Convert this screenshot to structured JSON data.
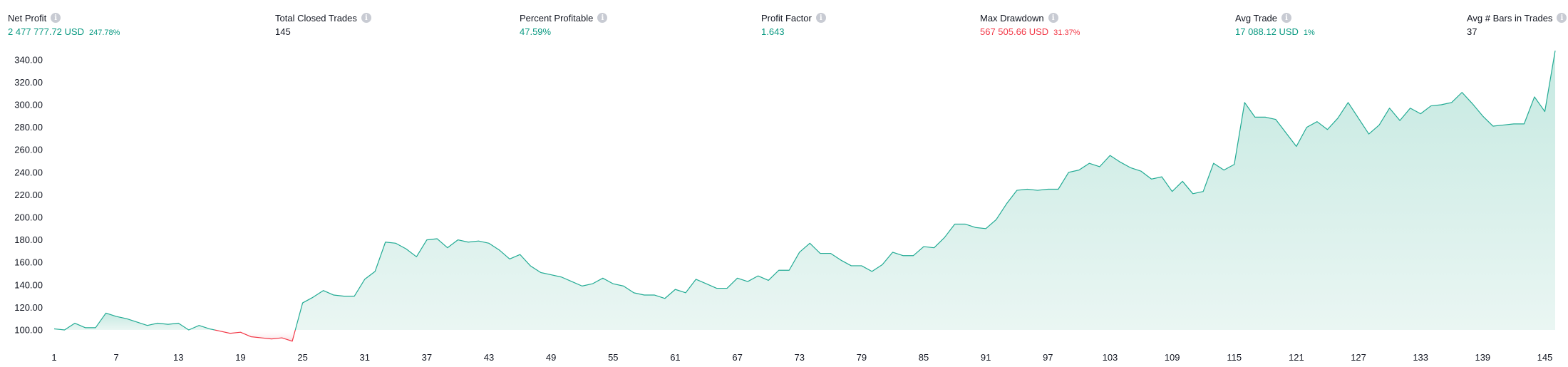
{
  "stats": [
    {
      "title": "Net Profit",
      "value": "2 477 777.72",
      "unit": "USD",
      "sub": "247.78%",
      "color": "pos"
    },
    {
      "title": "Total Closed Trades",
      "value": "145",
      "unit": "",
      "sub": "",
      "color": "neu"
    },
    {
      "title": "Percent Profitable",
      "value": "47.59%",
      "unit": "",
      "sub": "",
      "color": "pos"
    },
    {
      "title": "Profit Factor",
      "value": "1.643",
      "unit": "",
      "sub": "",
      "color": "pos"
    },
    {
      "title": "Max Drawdown",
      "value": "567 505.66",
      "unit": "USD",
      "sub": "31.37%",
      "color": "neg"
    },
    {
      "title": "Avg Trade",
      "value": "17 088.12",
      "unit": "USD",
      "sub": "1%",
      "color": "pos"
    },
    {
      "title": "Avg # Bars in Trades",
      "value": "37",
      "unit": "",
      "sub": "",
      "color": "neu"
    }
  ],
  "info_icon_glyph": "i",
  "colors": {
    "positive": "#089981",
    "negative": "#f23645",
    "text": "#131722",
    "line": "#22ab94",
    "area_top": "#c5e9e1",
    "area_bottom": "#eaf6f3",
    "neg_area": "#f9d9dc"
  },
  "chart_data": {
    "type": "area",
    "baseline": 100,
    "ylim": [
      88,
      348
    ],
    "xlim": [
      1,
      146
    ],
    "y_ticks": [
      100,
      120,
      140,
      160,
      180,
      200,
      220,
      240,
      260,
      280,
      300,
      320,
      340
    ],
    "y_tick_labels": [
      "100.00",
      "120.00",
      "140.00",
      "160.00",
      "180.00",
      "200.00",
      "220.00",
      "240.00",
      "260.00",
      "280.00",
      "300.00",
      "320.00",
      "340.00"
    ],
    "x_ticks": [
      1,
      7,
      13,
      19,
      25,
      31,
      37,
      43,
      49,
      55,
      61,
      67,
      73,
      79,
      85,
      91,
      97,
      103,
      109,
      115,
      121,
      127,
      133,
      139,
      145
    ],
    "x_tick_labels": [
      "1",
      "7",
      "13",
      "19",
      "25",
      "31",
      "37",
      "43",
      "49",
      "55",
      "61",
      "67",
      "73",
      "79",
      "85",
      "91",
      "97",
      "103",
      "109",
      "115",
      "121",
      "127",
      "133",
      "139",
      "145"
    ],
    "x": [
      1,
      2,
      3,
      4,
      5,
      6,
      7,
      8,
      9,
      10,
      11,
      12,
      13,
      14,
      15,
      16,
      17,
      18,
      19,
      20,
      21,
      22,
      23,
      24,
      25,
      26,
      27,
      28,
      29,
      30,
      31,
      32,
      33,
      34,
      35,
      36,
      37,
      38,
      39,
      40,
      41,
      42,
      43,
      44,
      45,
      46,
      47,
      48,
      49,
      50,
      51,
      52,
      53,
      54,
      55,
      56,
      57,
      58,
      59,
      60,
      61,
      62,
      63,
      64,
      65,
      66,
      67,
      68,
      69,
      70,
      71,
      72,
      73,
      74,
      75,
      76,
      77,
      78,
      79,
      80,
      81,
      82,
      83,
      84,
      85,
      86,
      87,
      88,
      89,
      90,
      91,
      92,
      93,
      94,
      95,
      96,
      97,
      98,
      99,
      100,
      101,
      102,
      103,
      104,
      105,
      106,
      107,
      108,
      109,
      110,
      111,
      112,
      113,
      114,
      115,
      116,
      117,
      118,
      119,
      120,
      121,
      122,
      123,
      124,
      125,
      126,
      127,
      128,
      129,
      130,
      131,
      132,
      133,
      134,
      135,
      136,
      137,
      138,
      139,
      140,
      141,
      142,
      143,
      144,
      145,
      146
    ],
    "y": [
      101,
      100,
      106,
      102,
      102,
      115,
      112,
      110,
      107,
      104,
      106,
      105,
      106,
      100,
      104,
      101,
      99,
      97,
      98,
      94,
      93,
      92,
      93,
      90,
      124,
      129,
      135,
      131,
      130,
      130,
      145,
      152,
      178,
      177,
      172,
      165,
      180,
      181,
      173,
      180,
      178,
      179,
      177,
      171,
      163,
      167,
      157,
      151,
      149,
      147,
      143,
      139,
      141,
      146,
      141,
      139,
      133,
      131,
      131,
      128,
      136,
      133,
      145,
      141,
      137,
      137,
      146,
      143,
      148,
      144,
      153,
      153,
      169,
      177,
      168,
      168,
      162,
      157,
      157,
      152,
      158,
      169,
      166,
      166,
      174,
      173,
      182,
      194,
      194,
      191,
      190,
      198,
      212,
      224,
      225,
      224,
      225,
      225,
      240,
      242,
      248,
      245,
      255,
      249,
      244,
      241,
      234,
      236,
      223,
      232,
      221,
      223,
      248,
      242,
      247,
      302,
      289,
      289,
      287,
      275,
      263,
      280,
      285,
      278,
      288,
      302,
      288,
      274,
      282,
      297,
      286,
      297,
      292,
      299,
      300,
      302,
      311,
      301,
      290,
      281,
      282,
      283,
      283,
      307,
      294,
      348
    ]
  }
}
